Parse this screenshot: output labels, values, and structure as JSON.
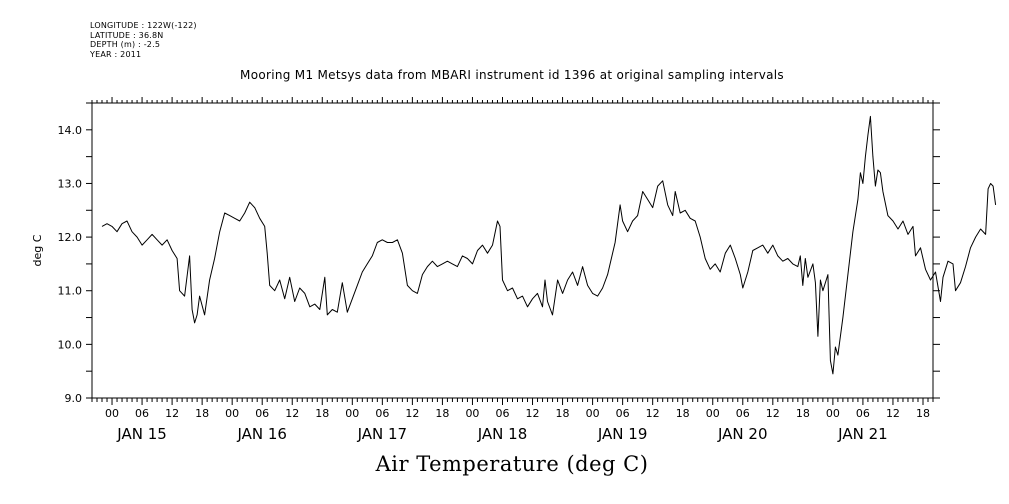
{
  "header": {
    "longitude": "LONGITUDE : 122W(-122)",
    "latitude": "LATITUDE : 36.8N",
    "depth": "DEPTH (m) : -2.5",
    "year": "YEAR : 2011",
    "title": "Mooring M1 Metsys data from MBARI instrument id 1396 at original sampling intervals",
    "bottom_title": "Air Temperature (deg C)"
  },
  "chart_data": {
    "type": "line",
    "title": "Mooring M1 Metsys data from MBARI instrument id 1396 at original sampling intervals",
    "xlabel": "Air Temperature (deg C)",
    "ylabel": "deg C",
    "ylim": [
      9.0,
      14.5
    ],
    "xlim_hours": [
      -4,
      164
    ],
    "y_ticks": [
      "9.0",
      "10.0",
      "11.0",
      "12.0",
      "13.0",
      "14.0"
    ],
    "x_hour_labels": [
      "00",
      "06",
      "12",
      "18"
    ],
    "day_labels": [
      "JAN 15",
      "JAN 16",
      "JAN 17",
      "JAN 18",
      "JAN 19",
      "JAN 20",
      "JAN 21"
    ],
    "grid": false,
    "line_color": "#000000",
    "series": [
      {
        "points": [
          [
            -2,
            12.2
          ],
          [
            -1,
            12.25
          ],
          [
            0,
            12.2
          ],
          [
            1,
            12.1
          ],
          [
            2,
            12.25
          ],
          [
            3,
            12.3
          ],
          [
            4,
            12.1
          ],
          [
            5,
            12.0
          ],
          [
            6,
            11.85
          ],
          [
            7,
            11.95
          ],
          [
            8,
            12.05
          ],
          [
            9,
            11.95
          ],
          [
            10,
            11.85
          ],
          [
            11,
            11.95
          ],
          [
            12,
            11.75
          ],
          [
            13,
            11.6
          ],
          [
            13.5,
            11.0
          ],
          [
            14.5,
            10.9
          ],
          [
            15.5,
            11.65
          ],
          [
            16,
            10.65
          ],
          [
            16.5,
            10.4
          ],
          [
            17,
            10.55
          ],
          [
            17.5,
            10.9
          ],
          [
            18.5,
            10.55
          ],
          [
            19.5,
            11.2
          ],
          [
            20.5,
            11.6
          ],
          [
            21.5,
            12.1
          ],
          [
            22.5,
            12.45
          ],
          [
            23.5,
            12.4
          ],
          [
            24.5,
            12.35
          ],
          [
            25.5,
            12.3
          ],
          [
            26.5,
            12.45
          ],
          [
            27.5,
            12.65
          ],
          [
            28.5,
            12.55
          ],
          [
            29.5,
            12.35
          ],
          [
            30.5,
            12.2
          ],
          [
            31,
            11.7
          ],
          [
            31.5,
            11.1
          ],
          [
            32.5,
            11.0
          ],
          [
            33.5,
            11.2
          ],
          [
            34.5,
            10.85
          ],
          [
            35.5,
            11.25
          ],
          [
            36.5,
            10.8
          ],
          [
            37.5,
            11.05
          ],
          [
            38.5,
            10.95
          ],
          [
            39.5,
            10.7
          ],
          [
            40.5,
            10.75
          ],
          [
            41.5,
            10.65
          ],
          [
            42.5,
            11.25
          ],
          [
            43,
            10.55
          ],
          [
            44,
            10.65
          ],
          [
            45,
            10.6
          ],
          [
            46,
            11.15
          ],
          [
            47,
            10.6
          ],
          [
            48,
            10.85
          ],
          [
            49,
            11.1
          ],
          [
            50,
            11.35
          ],
          [
            51,
            11.5
          ],
          [
            52,
            11.65
          ],
          [
            53,
            11.9
          ],
          [
            54,
            11.95
          ],
          [
            55,
            11.9
          ],
          [
            56,
            11.9
          ],
          [
            57,
            11.95
          ],
          [
            58,
            11.7
          ],
          [
            59,
            11.1
          ],
          [
            60,
            11.0
          ],
          [
            61,
            10.95
          ],
          [
            62,
            11.3
          ],
          [
            63,
            11.45
          ],
          [
            64,
            11.55
          ],
          [
            65,
            11.45
          ],
          [
            66,
            11.5
          ],
          [
            67,
            11.55
          ],
          [
            68,
            11.5
          ],
          [
            69,
            11.45
          ],
          [
            70,
            11.65
          ],
          [
            71,
            11.6
          ],
          [
            72,
            11.5
          ],
          [
            73,
            11.75
          ],
          [
            74,
            11.85
          ],
          [
            75,
            11.7
          ],
          [
            76,
            11.85
          ],
          [
            77,
            12.3
          ],
          [
            77.5,
            12.2
          ],
          [
            78,
            11.2
          ],
          [
            79,
            11.0
          ],
          [
            80,
            11.05
          ],
          [
            81,
            10.85
          ],
          [
            82,
            10.9
          ],
          [
            83,
            10.7
          ],
          [
            84,
            10.85
          ],
          [
            85,
            10.95
          ],
          [
            86,
            10.7
          ],
          [
            86.5,
            11.2
          ],
          [
            87,
            10.8
          ],
          [
            88,
            10.55
          ],
          [
            89,
            11.2
          ],
          [
            90,
            10.95
          ],
          [
            91,
            11.2
          ],
          [
            92,
            11.35
          ],
          [
            93,
            11.1
          ],
          [
            94,
            11.45
          ],
          [
            95,
            11.1
          ],
          [
            96,
            10.95
          ],
          [
            97,
            10.9
          ],
          [
            98,
            11.05
          ],
          [
            99,
            11.3
          ],
          [
            99.5,
            11.5
          ],
          [
            100.5,
            11.9
          ],
          [
            101.5,
            12.6
          ],
          [
            102,
            12.3
          ],
          [
            103,
            12.1
          ],
          [
            104,
            12.3
          ],
          [
            105,
            12.4
          ],
          [
            106,
            12.85
          ],
          [
            107,
            12.7
          ],
          [
            108,
            12.55
          ],
          [
            109,
            12.95
          ],
          [
            110,
            13.05
          ],
          [
            111,
            12.6
          ],
          [
            112,
            12.4
          ],
          [
            112.5,
            12.85
          ],
          [
            113.5,
            12.45
          ],
          [
            114.5,
            12.5
          ],
          [
            115.5,
            12.35
          ],
          [
            116.5,
            12.3
          ],
          [
            117.5,
            12.0
          ],
          [
            118.5,
            11.6
          ],
          [
            119.5,
            11.4
          ],
          [
            120.5,
            11.5
          ],
          [
            121.5,
            11.35
          ],
          [
            122.5,
            11.7
          ],
          [
            123.5,
            11.85
          ],
          [
            124.5,
            11.6
          ],
          [
            125.5,
            11.3
          ],
          [
            126,
            11.05
          ],
          [
            127,
            11.35
          ],
          [
            128,
            11.75
          ],
          [
            129,
            11.8
          ],
          [
            130,
            11.85
          ],
          [
            131,
            11.7
          ],
          [
            132,
            11.85
          ],
          [
            133,
            11.65
          ],
          [
            134,
            11.55
          ],
          [
            135,
            11.6
          ],
          [
            136,
            11.5
          ],
          [
            137,
            11.45
          ],
          [
            137.5,
            11.65
          ],
          [
            138,
            11.1
          ],
          [
            138.5,
            11.6
          ],
          [
            139,
            11.25
          ],
          [
            140,
            11.5
          ],
          [
            140.5,
            11.15
          ],
          [
            141,
            10.15
          ],
          [
            141.5,
            11.2
          ],
          [
            142,
            11.0
          ],
          [
            143,
            11.3
          ],
          [
            143.5,
            9.7
          ],
          [
            144,
            9.45
          ],
          [
            144.5,
            9.95
          ],
          [
            145,
            9.8
          ],
          [
            146,
            10.5
          ],
          [
            147,
            11.3
          ],
          [
            148,
            12.1
          ],
          [
            149,
            12.7
          ],
          [
            149.5,
            13.2
          ],
          [
            150,
            13.0
          ],
          [
            150.5,
            13.5
          ],
          [
            151,
            13.9
          ],
          [
            151.5,
            14.25
          ],
          [
            152,
            13.5
          ],
          [
            152.5,
            12.95
          ],
          [
            153,
            13.25
          ],
          [
            153.5,
            13.2
          ],
          [
            154,
            12.85
          ],
          [
            155,
            12.4
          ],
          [
            156,
            12.3
          ],
          [
            157,
            12.15
          ],
          [
            158,
            12.3
          ],
          [
            159,
            12.05
          ],
          [
            160,
            12.2
          ],
          [
            160.5,
            11.65
          ],
          [
            161.5,
            11.8
          ],
          [
            162.5,
            11.4
          ],
          [
            163.5,
            11.2
          ],
          [
            164.5,
            11.35
          ],
          [
            165.5,
            10.8
          ],
          [
            166,
            11.25
          ],
          [
            167,
            11.55
          ],
          [
            168,
            11.5
          ],
          [
            168.5,
            11.0
          ],
          [
            169.5,
            11.15
          ],
          [
            170.5,
            11.45
          ],
          [
            171.5,
            11.8
          ],
          [
            172.5,
            12.0
          ],
          [
            173.5,
            12.15
          ],
          [
            174.5,
            12.05
          ],
          [
            175,
            12.9
          ],
          [
            175.5,
            13.0
          ],
          [
            176,
            12.95
          ],
          [
            176.5,
            12.6
          ]
        ]
      }
    ]
  }
}
